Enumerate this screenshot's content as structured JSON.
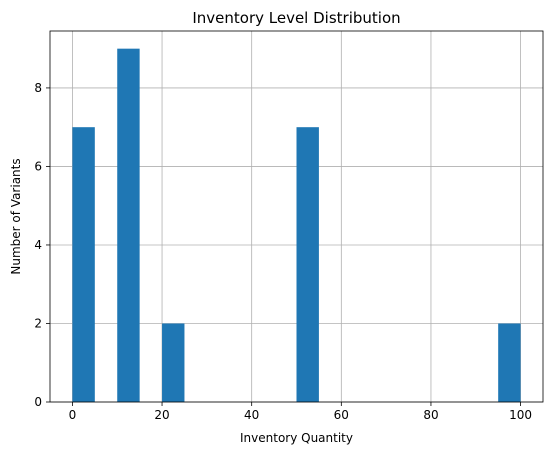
{
  "chart_data": {
    "type": "bar",
    "title": "Inventory Level Distribution",
    "xlabel": "Inventory Quantity",
    "ylabel": "Number of Variants",
    "xlim": [
      -5,
      105
    ],
    "ylim": [
      0,
      9.45
    ],
    "xticks": [
      0,
      20,
      40,
      60,
      80,
      100
    ],
    "yticks": [
      0,
      2,
      4,
      6,
      8
    ],
    "grid": true,
    "bar_color": "#1f77b4",
    "bins": [
      {
        "x0": 0,
        "x1": 5,
        "count": 7
      },
      {
        "x0": 10,
        "x1": 15,
        "count": 9
      },
      {
        "x0": 20,
        "x1": 25,
        "count": 2
      },
      {
        "x0": 50,
        "x1": 55,
        "count": 7
      },
      {
        "x0": 95,
        "x1": 100,
        "count": 2
      }
    ]
  }
}
